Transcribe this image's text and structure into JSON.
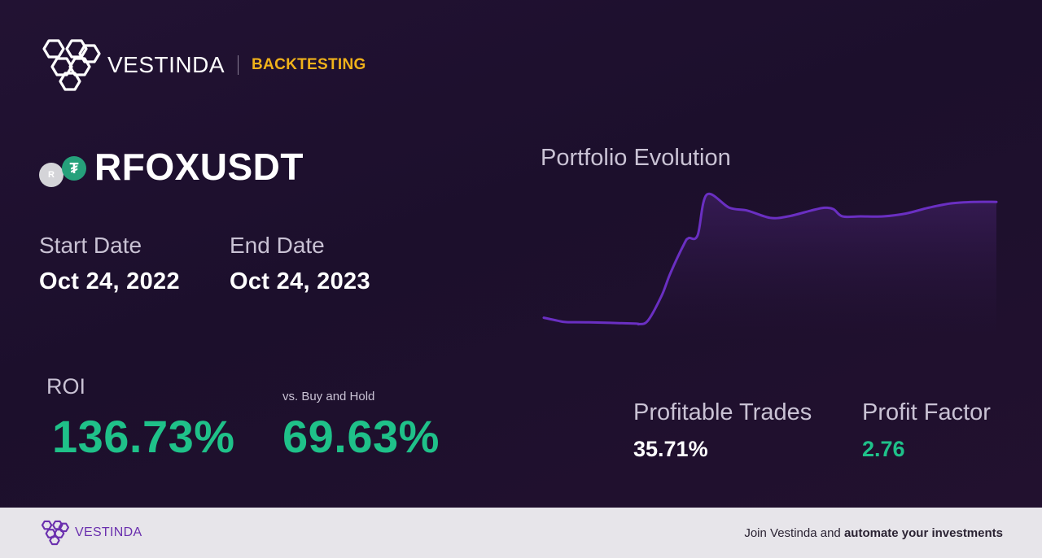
{
  "brand": {
    "name": "VESTINDA",
    "section": "BACKTESTING"
  },
  "pair": {
    "name": "RFOXUSDT",
    "base_icon_letter": "R",
    "quote_icon_glyph": "₮"
  },
  "dates": {
    "start_label": "Start Date",
    "start_value": "Oct 24, 2022",
    "end_label": "End Date",
    "end_value": "Oct 24, 2023"
  },
  "roi": {
    "label": "ROI",
    "value": "136.73%"
  },
  "vs_hold": {
    "label": "vs. Buy and Hold",
    "value": "69.63%"
  },
  "stats": {
    "profitable_trades_label": "Profitable Trades",
    "profitable_trades_value": "35.71%",
    "profit_factor_label": "Profit Factor",
    "profit_factor_value": "2.76"
  },
  "chart_title": "Portfolio Evolution",
  "chart_data": {
    "type": "area",
    "title": "Portfolio Evolution",
    "xlabel": "",
    "ylabel": "",
    "grid": false,
    "x": [
      0,
      3,
      5,
      10,
      20,
      21,
      23,
      26,
      28,
      31,
      32,
      34,
      36,
      41,
      45,
      50,
      54,
      59,
      62,
      64,
      66,
      70,
      75,
      80,
      85,
      90,
      95,
      100
    ],
    "y": [
      12,
      10,
      9,
      8.8,
      8,
      7.6,
      10,
      27,
      43,
      63,
      67,
      69,
      97,
      88,
      86,
      81,
      82,
      86,
      88,
      87,
      82,
      82,
      82,
      84,
      88,
      91,
      92,
      92
    ],
    "ylim": [
      0,
      100
    ],
    "colors": {
      "line": "#6a2fc2",
      "fill_top": "#4a2475"
    }
  },
  "colors": {
    "accent_green": "#1fc189",
    "accent_yellow": "#f0b21a",
    "brand_purple": "#6a2fae",
    "background": "#1c0f2c"
  },
  "icons": {
    "logo": "vestinda-hexagon-logo-icon",
    "base_coin": "rfox-coin-icon",
    "quote_coin": "tether-coin-icon"
  },
  "footer": {
    "brand_name": "VESTINDA",
    "cta_prefix": "Join Vestinda and ",
    "cta_bold": "automate your investments"
  }
}
